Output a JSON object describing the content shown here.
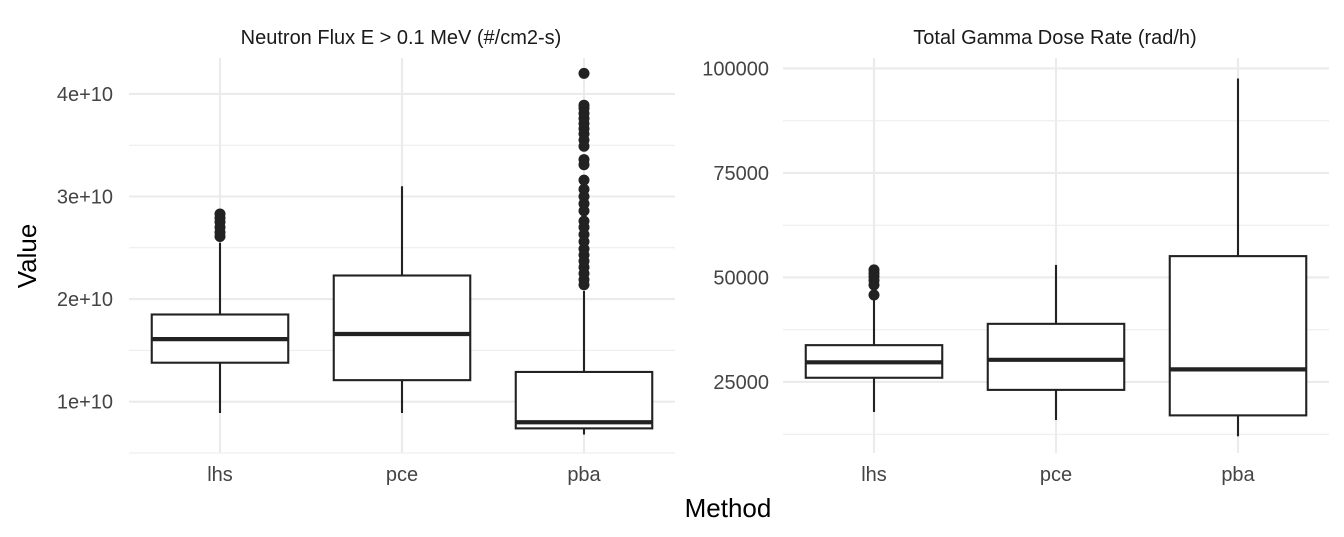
{
  "chart_data": {
    "type": "box",
    "xlabel": "Method",
    "ylabel": "Value",
    "grid": true,
    "facets": [
      {
        "title": "Neutron Flux E > 0.1 MeV (#/cm2-s)",
        "categories": [
          "lhs",
          "pce",
          "pba"
        ],
        "ylim": [
          5000000000,
          43500000000
        ],
        "yticks": [
          10000000000,
          20000000000,
          30000000000,
          40000000000
        ],
        "ytick_labels": [
          "1e+10",
          "2e+10",
          "3e+10",
          "4e+10"
        ],
        "boxes": [
          {
            "category": "lhs",
            "min": 8900000000,
            "q1": 13800000000,
            "median": 16100000000,
            "q3": 18500000000,
            "max": 25500000000,
            "outliers": [
              26100000000,
              26500000000,
              27000000000,
              27500000000,
              27900000000,
              28300000000
            ]
          },
          {
            "category": "pce",
            "min": 8900000000,
            "q1": 12100000000,
            "median": 16600000000,
            "q3": 22300000000,
            "max": 31000000000,
            "outliers": []
          },
          {
            "category": "pba",
            "min": 6800000000,
            "q1": 7400000000,
            "median": 8000000000,
            "q3": 12900000000,
            "max": 20800000000,
            "outliers": [
              21400000000,
              21900000000,
              22500000000,
              23100000000,
              23700000000,
              24300000000,
              24900000000,
              25600000000,
              26300000000,
              27000000000,
              27600000000,
              28600000000,
              29300000000,
              30000000000,
              30700000000,
              31600000000,
              33100000000,
              33600000000,
              34900000000,
              35500000000,
              36100000000,
              36600000000,
              37100000000,
              37600000000,
              38100000000,
              38600000000,
              38900000000,
              42000000000
            ]
          }
        ]
      },
      {
        "title": "Total Gamma Dose Rate (rad/h)",
        "categories": [
          "lhs",
          "pce",
          "pba"
        ],
        "ylim": [
          8000,
          102500
        ],
        "yticks": [
          25000,
          50000,
          75000,
          100000
        ],
        "ytick_labels": [
          "25000",
          "50000",
          "75000",
          "100000"
        ],
        "boxes": [
          {
            "category": "lhs",
            "min": 17800,
            "q1": 26000,
            "median": 29700,
            "q3": 33800,
            "max": 45200,
            "outliers": [
              45800,
              48200,
              49300,
              50200,
              51000,
              51800
            ]
          },
          {
            "category": "pce",
            "min": 15900,
            "q1": 23100,
            "median": 30300,
            "q3": 38900,
            "max": 53000,
            "outliers": []
          },
          {
            "category": "pba",
            "min": 12000,
            "q1": 17000,
            "median": 28000,
            "q3": 55100,
            "max": 97600,
            "outliers": []
          }
        ]
      }
    ]
  }
}
